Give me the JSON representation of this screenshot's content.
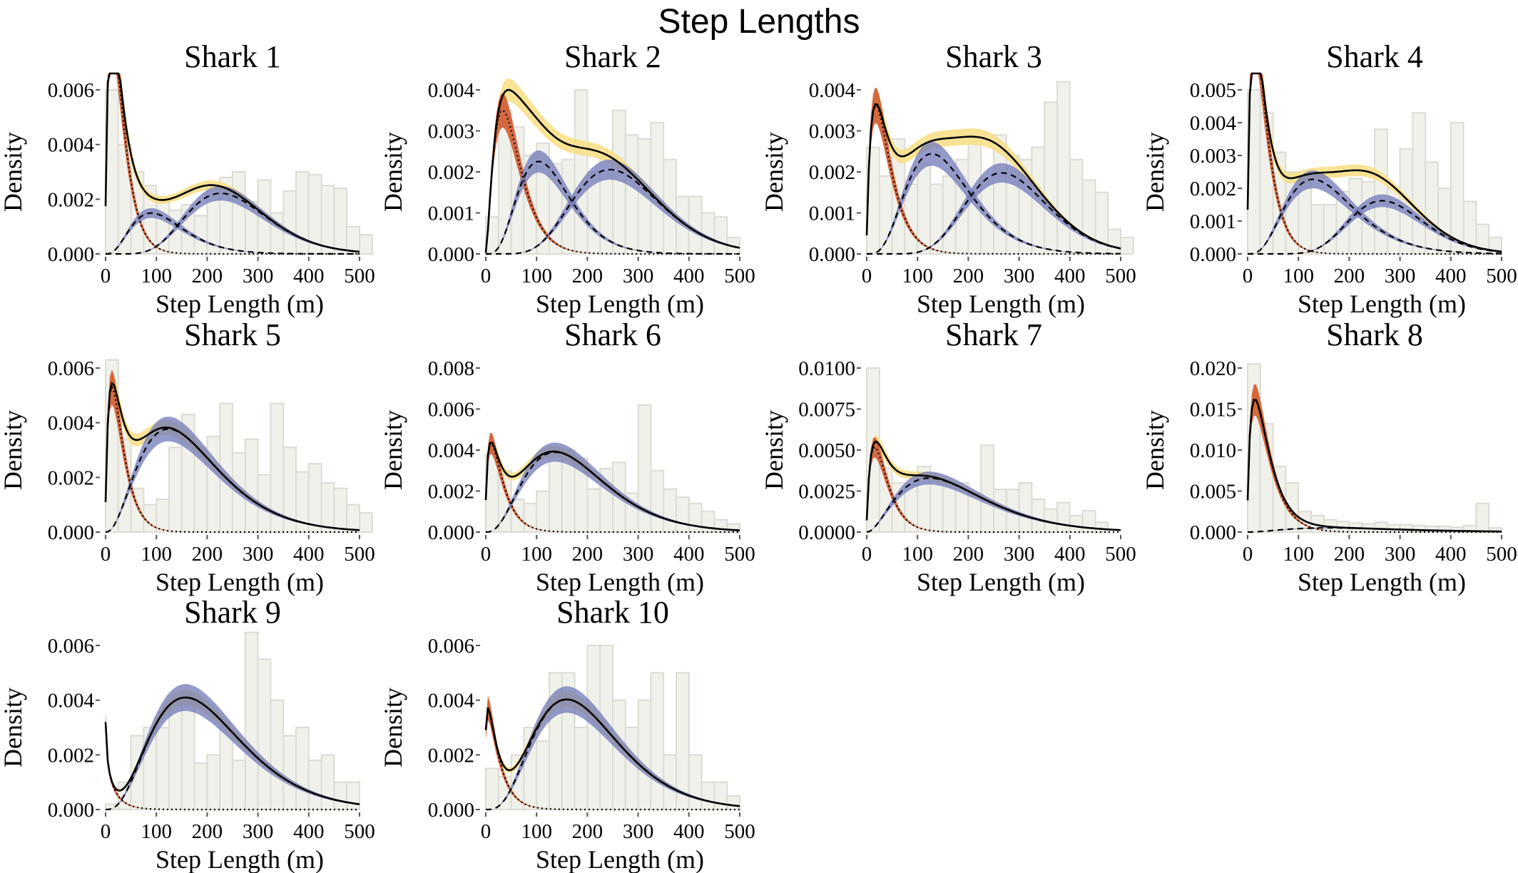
{
  "title": "Step Lengths",
  "colors": {
    "histogram": "#f1f1ec",
    "state1": "#cf5a2e",
    "state2": "#7078b8",
    "state3": "#7078b8",
    "total_band": "#f7e08a",
    "total_line": "#000000"
  },
  "chart_data": [
    {
      "type": "area",
      "title": "Shark 1",
      "xlabel": "Step Length (m)",
      "ylabel": "Density",
      "xlim": [
        0,
        500
      ],
      "xticks": [
        "0",
        "100",
        "200",
        "300",
        "400",
        "500"
      ],
      "ylim": [
        0,
        0.006
      ],
      "yticks": [
        0,
        0.002,
        0.004,
        0.006
      ],
      "ytick_labels": [
        "0.000",
        "0.002",
        "0.004",
        "0.006"
      ],
      "histogram": [
        0.006,
        0.004,
        0.003,
        0.0025,
        0.0019,
        0.0016,
        0.0018,
        0.0014,
        0.0025,
        0.0028,
        0.003,
        0.0019,
        0.0027,
        0.0015,
        0.0023,
        0.003,
        0.0029,
        0.0025,
        0.0024,
        0.001,
        0.0007
      ],
      "components": [
        {
          "shape": 1.7,
          "mean": 30,
          "weight": 0.35
        },
        {
          "shape": 4,
          "mean": 120,
          "weight": 0.2
        },
        {
          "shape": 9,
          "mean": 255,
          "weight": 0.45
        }
      ]
    },
    {
      "type": "area",
      "title": "Shark 2",
      "xlabel": "Step Length (m)",
      "ylabel": "Density",
      "xlim": [
        0,
        500
      ],
      "xticks": [
        "0",
        "100",
        "200",
        "300",
        "400",
        "500"
      ],
      "ylim": [
        0,
        0.004
      ],
      "yticks": [
        0,
        0.001,
        0.002,
        0.003,
        0.004
      ],
      "ytick_labels": [
        "0.000",
        "0.001",
        "0.002",
        "0.003",
        "0.004"
      ],
      "histogram": [
        0.0009,
        0.0035,
        0.0031,
        0.0024,
        0.0027,
        0.0022,
        0.0023,
        0.004,
        0.002,
        0.0024,
        0.0035,
        0.0029,
        0.0028,
        0.0032,
        0.0023,
        0.0014,
        0.0014,
        0.001,
        0.0009,
        0.0004
      ],
      "components": [
        {
          "shape": 2.5,
          "mean": 55,
          "weight": 0.25
        },
        {
          "shape": 5,
          "mean": 130,
          "weight": 0.3
        },
        {
          "shape": 9,
          "mean": 275,
          "weight": 0.45
        }
      ]
    },
    {
      "type": "area",
      "title": "Shark 3",
      "xlabel": "Step Length (m)",
      "ylabel": "Density",
      "xlim": [
        0,
        500
      ],
      "xticks": [
        "0",
        "100",
        "200",
        "300",
        "400",
        "500"
      ],
      "ylim": [
        0,
        0.004
      ],
      "yticks": [
        0,
        0.001,
        0.002,
        0.003,
        0.004
      ],
      "ytick_labels": [
        "0.000",
        "0.001",
        "0.002",
        "0.003",
        "0.004"
      ],
      "histogram": [
        0.0026,
        0.0019,
        0.0028,
        0.0017,
        0.0022,
        0.0017,
        0.0019,
        0.0023,
        0.0028,
        0.0018,
        0.0029,
        0.0024,
        0.0023,
        0.0026,
        0.0037,
        0.0042,
        0.0023,
        0.0018,
        0.0015,
        0.0006,
        0.0004
      ],
      "components": [
        {
          "shape": 1.8,
          "mean": 40,
          "weight": 0.2
        },
        {
          "shape": 5,
          "mean": 160,
          "weight": 0.4
        },
        {
          "shape": 12,
          "mean": 290,
          "weight": 0.4
        }
      ]
    },
    {
      "type": "area",
      "title": "Shark 4",
      "xlabel": "Step Length (m)",
      "ylabel": "Density",
      "xlim": [
        0,
        500
      ],
      "xticks": [
        "0",
        "100",
        "200",
        "300",
        "400",
        "500"
      ],
      "ylim": [
        0,
        0.005
      ],
      "yticks": [
        0,
        0.001,
        0.002,
        0.003,
        0.004,
        0.005
      ],
      "ytick_labels": [
        "0.000",
        "0.001",
        "0.002",
        "0.003",
        "0.004",
        "0.005"
      ],
      "histogram": [
        0.005,
        0.0043,
        0.0031,
        0.0025,
        0.0022,
        0.0015,
        0.0015,
        0.0019,
        0.0023,
        0.0022,
        0.0038,
        0.002,
        0.0032,
        0.0043,
        0.0028,
        0.002,
        0.004,
        0.0016,
        0.0009,
        0.0005
      ],
      "components": [
        {
          "shape": 1.7,
          "mean": 32,
          "weight": 0.3
        },
        {
          "shape": 4.5,
          "mean": 165,
          "weight": 0.4
        },
        {
          "shape": 14,
          "mean": 285,
          "weight": 0.3
        }
      ]
    },
    {
      "type": "area",
      "title": "Shark 5",
      "xlabel": "Step Length (m)",
      "ylabel": "Density",
      "xlim": [
        0,
        500
      ],
      "xticks": [
        "0",
        "100",
        "200",
        "300",
        "400",
        "500"
      ],
      "ylim": [
        0,
        0.006
      ],
      "yticks": [
        0,
        0.002,
        0.004,
        0.006
      ],
      "ytick_labels": [
        "0.000",
        "0.002",
        "0.004",
        "0.006"
      ],
      "histogram": [
        0.0063,
        0.0034,
        0.0016,
        0.001,
        0.0012,
        0.0031,
        0.0043,
        0.0031,
        0.0035,
        0.0047,
        0.0029,
        0.0034,
        0.0021,
        0.0047,
        0.0031,
        0.0022,
        0.0025,
        0.0018,
        0.0016,
        0.001,
        0.0007
      ],
      "components": [
        {
          "shape": 1.7,
          "mean": 30,
          "weight": 0.22
        },
        {
          "shape": 3.4,
          "mean": 175,
          "weight": 0.78
        }
      ]
    },
    {
      "type": "area",
      "title": "Shark 6",
      "xlabel": "Step Length (m)",
      "ylabel": "Density",
      "xlim": [
        0,
        500
      ],
      "xticks": [
        "0",
        "100",
        "200",
        "300",
        "400",
        "500"
      ],
      "ylim": [
        0,
        0.008
      ],
      "yticks": [
        0,
        0.002,
        0.004,
        0.006,
        0.008
      ],
      "ytick_labels": [
        "0.000",
        "0.002",
        "0.004",
        "0.006",
        "0.008"
      ],
      "histogram": [
        0.0038,
        0.003,
        0.0016,
        0.0014,
        0.002,
        0.004,
        0.004,
        0.0036,
        0.0021,
        0.0031,
        0.0034,
        0.0019,
        0.0062,
        0.003,
        0.0021,
        0.0017,
        0.0014,
        0.001,
        0.0006,
        0.0004
      ],
      "components": [
        {
          "shape": 1.5,
          "mean": 30,
          "weight": 0.18
        },
        {
          "shape": 3.8,
          "mean": 185,
          "weight": 0.82
        }
      ]
    },
    {
      "type": "area",
      "title": "Shark 7",
      "xlabel": "Step Length (m)",
      "ylabel": "Density",
      "xlim": [
        0,
        500
      ],
      "xticks": [
        "0",
        "100",
        "200",
        "300",
        "400",
        "500"
      ],
      "ylim": [
        0,
        0.01
      ],
      "yticks": [
        0,
        0.0025,
        0.005,
        0.0075,
        0.01
      ],
      "ytick_labels": [
        "0.0000",
        "0.0025",
        "0.0050",
        "0.0075",
        "0.0100"
      ],
      "histogram": [
        0.01,
        0.0039,
        0.003,
        0.0029,
        0.004,
        0.0033,
        0.0028,
        0.003,
        0.0024,
        0.0053,
        0.0026,
        0.0026,
        0.003,
        0.002,
        0.0014,
        0.0018,
        0.001,
        0.0013,
        0.0006
      ],
      "components": [
        {
          "shape": 1.8,
          "mean": 35,
          "weight": 0.25
        },
        {
          "shape": 3,
          "mean": 185,
          "weight": 0.75
        }
      ]
    },
    {
      "type": "area",
      "title": "Shark 8",
      "xlabel": "Step Length (m)",
      "ylabel": "Density",
      "xlim": [
        0,
        500
      ],
      "xticks": [
        "0",
        "100",
        "200",
        "300",
        "400",
        "500"
      ],
      "ylim": [
        0,
        0.02
      ],
      "yticks": [
        0,
        0.005,
        0.01,
        0.015,
        0.02
      ],
      "ytick_labels": [
        "0.000",
        "0.005",
        "0.010",
        "0.015",
        "0.020"
      ],
      "histogram": [
        0.0205,
        0.0132,
        0.008,
        0.006,
        0.0025,
        0.002,
        0.0015,
        0.0013,
        0.0011,
        0.001,
        0.0012,
        0.0009,
        0.0009,
        0.0008,
        0.0007,
        0.0007,
        0.0006,
        0.0008,
        0.0035,
        0.0005
      ],
      "components": [
        {
          "shape": 1.6,
          "mean": 38,
          "weight": 0.85
        },
        {
          "shape": 3,
          "mean": 240,
          "weight": 0.15
        }
      ]
    },
    {
      "type": "area",
      "title": "Shark 9",
      "xlabel": "Step Length (m)",
      "ylabel": "Density",
      "xlim": [
        0,
        500
      ],
      "xticks": [
        "0",
        "100",
        "200",
        "300",
        "400",
        "500"
      ],
      "ylim": [
        0,
        0.006
      ],
      "yticks": [
        0,
        0.002,
        0.004,
        0.006
      ],
      "ytick_labels": [
        "0.000",
        "0.002",
        "0.004",
        "0.006"
      ],
      "histogram": [
        0.0002,
        0.001,
        0.0027,
        0.003,
        0.003,
        0.004,
        0.0039,
        0.0017,
        0.002,
        0.003,
        0.0018,
        0.0065,
        0.0055,
        0.004,
        0.0027,
        0.003,
        0.0018,
        0.002,
        0.001,
        0.001
      ],
      "components": [
        {
          "shape": 0.8,
          "mean": 18,
          "weight": 0.04
        },
        {
          "shape": 4,
          "mean": 210,
          "weight": 0.96
        }
      ]
    },
    {
      "type": "area",
      "title": "Shark 10",
      "xlabel": "Step Length (m)",
      "ylabel": "Density",
      "xlim": [
        0,
        500
      ],
      "xticks": [
        "0",
        "100",
        "200",
        "300",
        "400",
        "500"
      ],
      "ylim": [
        0,
        0.006
      ],
      "yticks": [
        0,
        0.002,
        0.004,
        0.006
      ],
      "ytick_labels": [
        "0.000",
        "0.002",
        "0.004",
        "0.006"
      ],
      "histogram": [
        0.0015,
        0.0012,
        0.002,
        0.003,
        0.0025,
        0.005,
        0.005,
        0.003,
        0.006,
        0.006,
        0.004,
        0.003,
        0.004,
        0.005,
        0.002,
        0.005,
        0.002,
        0.001,
        0.001,
        0.0005
      ],
      "components": [
        {
          "shape": 1.2,
          "mean": 25,
          "weight": 0.12
        },
        {
          "shape": 4.5,
          "mean": 205,
          "weight": 0.88
        }
      ]
    }
  ]
}
